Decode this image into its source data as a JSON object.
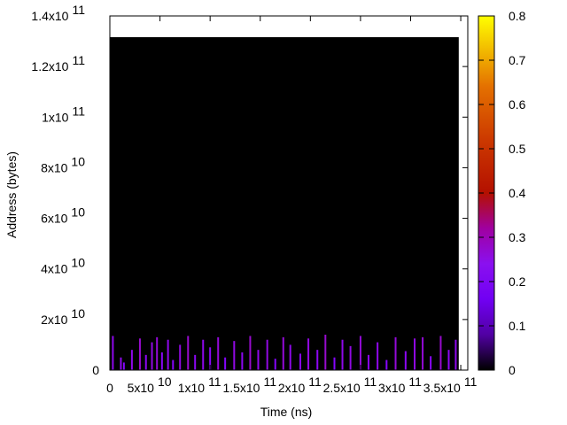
{
  "chart_data": {
    "type": "heatmap",
    "xlabel": "Time (ns)",
    "ylabel": "Address (bytes)",
    "xlim": [
      0,
      357000000000
    ],
    "ylim": [
      0,
      140000000000
    ],
    "xticks": [
      0,
      {
        "value": 50000000000,
        "label": "5x10",
        "exponent": "10"
      },
      {
        "value": 100000000000,
        "label": "1x10",
        "exponent": "11"
      },
      {
        "value": 150000000000,
        "label": "1.5x10",
        "exponent": "11"
      },
      {
        "value": 200000000000,
        "label": "2x10",
        "exponent": "11"
      },
      {
        "value": 250000000000,
        "label": "2.5x10",
        "exponent": "11"
      },
      {
        "value": 300000000000,
        "label": "3x10",
        "exponent": "11"
      },
      {
        "value": 350000000000,
        "label": "3.5x10",
        "exponent": "11"
      }
    ],
    "yticks": [
      0,
      {
        "value": 20000000000,
        "label": "2x10",
        "exponent": "10"
      },
      {
        "value": 40000000000,
        "label": "4x10",
        "exponent": "10"
      },
      {
        "value": 60000000000,
        "label": "6x10",
        "exponent": "10"
      },
      {
        "value": 80000000000,
        "label": "8x10",
        "exponent": "10"
      },
      {
        "value": 100000000000,
        "label": "1x10",
        "exponent": "11"
      },
      {
        "value": 120000000000,
        "label": "1.2x10",
        "exponent": "11"
      },
      {
        "value": 140000000000,
        "label": "1.4x10",
        "exponent": "11"
      }
    ],
    "clim": [
      0,
      0.8
    ],
    "cticks": [
      0,
      0.1,
      0.2,
      0.3,
      0.4,
      0.5,
      0.6,
      0.7,
      0.8
    ],
    "region": {
      "x": [
        0,
        348000000000
      ],
      "y": [
        0,
        131600000000
      ],
      "value": 0
    },
    "spikes": {
      "x": [
        3000000000,
        11000000000,
        14000000000,
        22000000000,
        30000000000,
        36000000000,
        42000000000,
        47000000000,
        52000000000,
        58000000000,
        63000000000,
        70000000000,
        78000000000,
        85000000000,
        93000000000,
        100000000000,
        108000000000,
        115000000000,
        124000000000,
        132000000000,
        140000000000,
        148000000000,
        157000000000,
        165000000000,
        173000000000,
        180000000000,
        190000000000,
        198000000000,
        207000000000,
        215000000000,
        224000000000,
        232000000000,
        240000000000,
        250000000000,
        258000000000,
        267000000000,
        276000000000,
        285000000000,
        295000000000,
        304000000000,
        312000000000,
        320000000000,
        330000000000,
        338000000000,
        345000000000
      ],
      "y": [
        13500000000,
        5000000000,
        3000000000,
        8000000000,
        12500000000,
        6000000000,
        11000000000,
        13000000000,
        7000000000,
        12000000000,
        4000000000,
        10000000000,
        13500000000,
        6000000000,
        12000000000,
        9000000000,
        13000000000,
        5000000000,
        11500000000,
        7000000000,
        13500000000,
        8000000000,
        12000000000,
        4500000000,
        13000000000,
        10000000000,
        6500000000,
        12500000000,
        8000000000,
        14000000000,
        5000000000,
        12000000000,
        9500000000,
        13500000000,
        6000000000,
        11000000000,
        4000000000,
        13000000000,
        7500000000,
        12500000000,
        13000000000,
        5500000000,
        13500000000,
        8000000000,
        12000000000
      ],
      "values": [
        0.25,
        0.25,
        0.22,
        0.25,
        0.28,
        0.24,
        0.26,
        0.27,
        0.23,
        0.25,
        0.22,
        0.26,
        0.28,
        0.24,
        0.25,
        0.23,
        0.27,
        0.22,
        0.26,
        0.24,
        0.28,
        0.25,
        0.26,
        0.22,
        0.27,
        0.25,
        0.23,
        0.26,
        0.24,
        0.28,
        0.22,
        0.25,
        0.26,
        0.27,
        0.23,
        0.25,
        0.22,
        0.27,
        0.24,
        0.26,
        0.27,
        0.23,
        0.28,
        0.24,
        0.25
      ]
    }
  }
}
